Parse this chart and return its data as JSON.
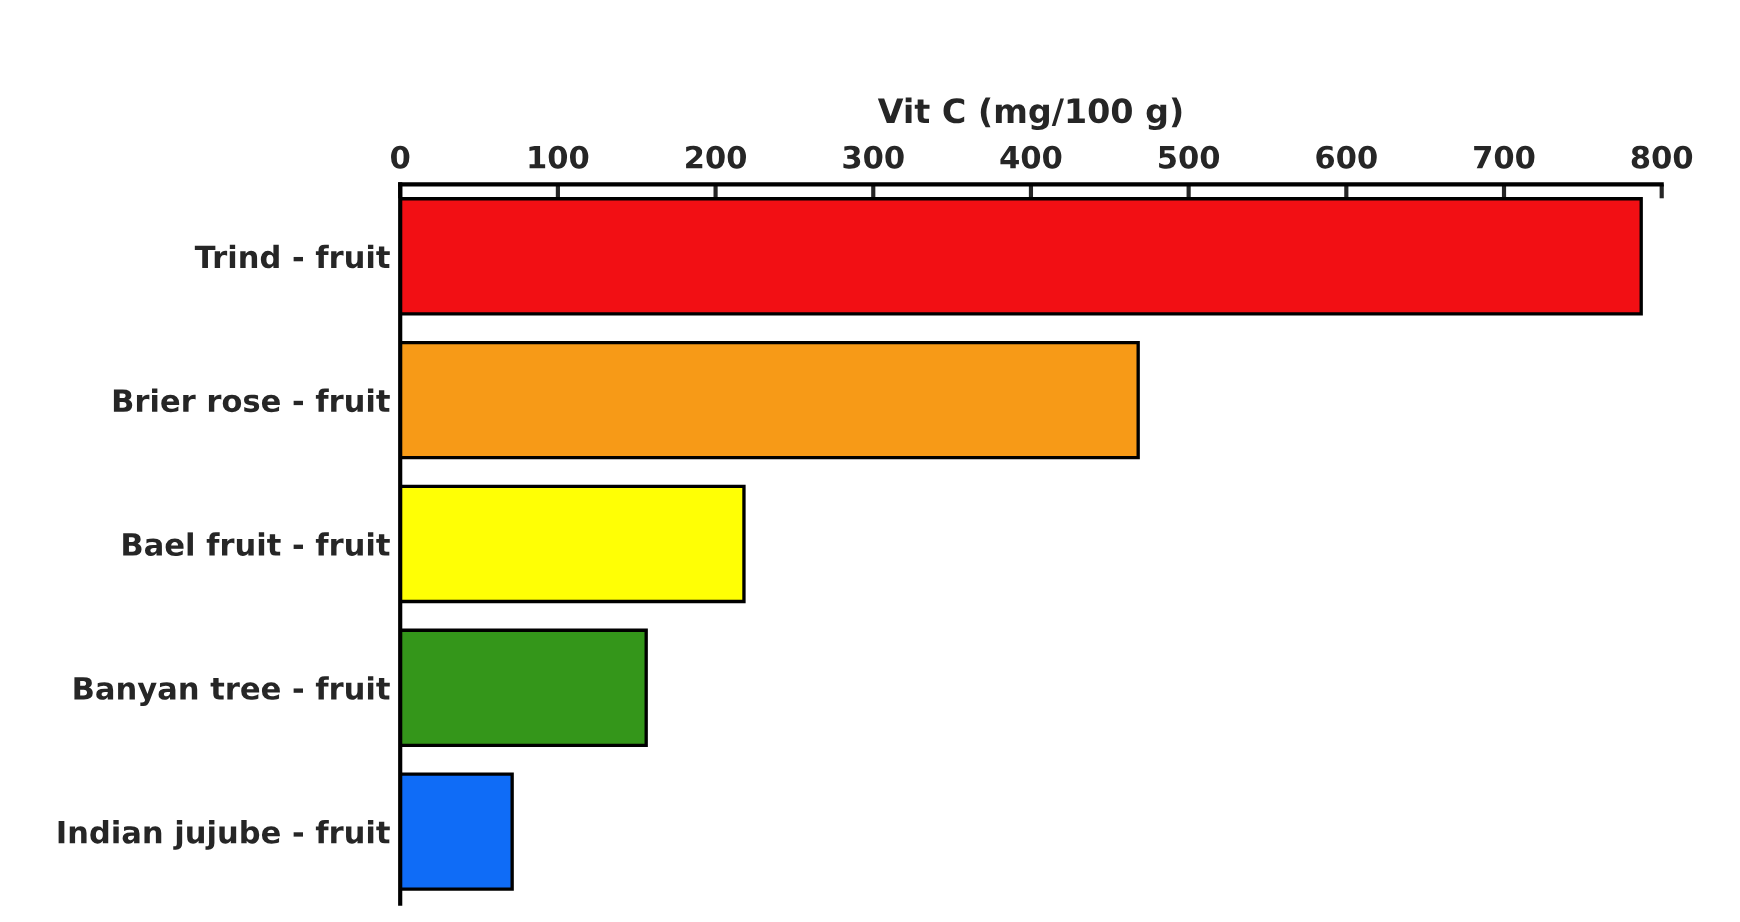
{
  "chart_data": {
    "type": "bar",
    "orientation": "horizontal",
    "xlabel": "Vit C (mg/100 g)",
    "categories": [
      "Trind - fruit",
      "Brier rose - fruit",
      "Bael fruit - fruit",
      "Banyan tree - fruit",
      "Indian jujube - fruit"
    ],
    "values": [
      787,
      468,
      218,
      156,
      71
    ],
    "colors": [
      "#f20f14",
      "#f79a17",
      "#ffff05",
      "#34961a",
      "#0f6cf7"
    ],
    "xlim": [
      0,
      800
    ],
    "xticks": [
      0,
      100,
      200,
      300,
      400,
      500,
      600,
      700,
      800
    ],
    "grid": false
  }
}
